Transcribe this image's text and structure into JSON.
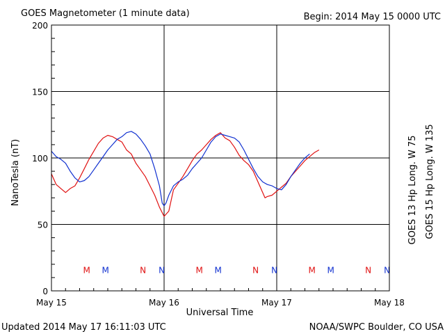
{
  "chart_data": {
    "type": "line",
    "title": "GOES Magnetometer (1 minute data)",
    "begin": "Begin:  2014 May 15 0000 UTC",
    "xlabel": "Universal Time",
    "ylabel": "NanoTesla (nT)",
    "updated": "Updated 2014 May 17 16:11:03 UTC",
    "source": "NOAA/SWPC Boulder, CO USA",
    "ylim": [
      0,
      200
    ],
    "xlim": [
      0,
      72
    ],
    "y_ticks": [
      "0",
      "50",
      "100",
      "150",
      "200"
    ],
    "x_ticks": [
      {
        "label": "May 15",
        "hour": 0
      },
      {
        "label": "May 16",
        "hour": 24
      },
      {
        "label": "May 17",
        "hour": 48
      },
      {
        "label": "May 18",
        "hour": 72
      }
    ],
    "grid": true,
    "legend_position": "right (vertical)",
    "x_unit": "hours since 2014 May 15 0000 UTC",
    "series": [
      {
        "name": "GOES 13 Hp  Long. W 75",
        "color": "#e01010",
        "points": [
          [
            0,
            88
          ],
          [
            1,
            80
          ],
          [
            2,
            77
          ],
          [
            3,
            74
          ],
          [
            4,
            77
          ],
          [
            5,
            79
          ],
          [
            6,
            85
          ],
          [
            7,
            92
          ],
          [
            8,
            99
          ],
          [
            9,
            105
          ],
          [
            10,
            111
          ],
          [
            11,
            115
          ],
          [
            12,
            117
          ],
          [
            13,
            116
          ],
          [
            14,
            114
          ],
          [
            15,
            112
          ],
          [
            16,
            106
          ],
          [
            17,
            103
          ],
          [
            18,
            96
          ],
          [
            19,
            91
          ],
          [
            20,
            86
          ],
          [
            21,
            79
          ],
          [
            22,
            72
          ],
          [
            23,
            63
          ],
          [
            24,
            56
          ],
          [
            25,
            60
          ],
          [
            25.5,
            68
          ],
          [
            26,
            76
          ],
          [
            27,
            81
          ],
          [
            28,
            86
          ],
          [
            29,
            92
          ],
          [
            30,
            98
          ],
          [
            31,
            103
          ],
          [
            32,
            106
          ],
          [
            33,
            110
          ],
          [
            34,
            114
          ],
          [
            35,
            117
          ],
          [
            36,
            119
          ],
          [
            37,
            115
          ],
          [
            38,
            113
          ],
          [
            39,
            108
          ],
          [
            40,
            102
          ],
          [
            41,
            98
          ],
          [
            42,
            95
          ],
          [
            43,
            90
          ],
          [
            44,
            82
          ],
          [
            45,
            74
          ],
          [
            45.5,
            70
          ],
          [
            46,
            71
          ],
          [
            47,
            72
          ],
          [
            48,
            75
          ],
          [
            49,
            78
          ],
          [
            50,
            81
          ],
          [
            51,
            86
          ],
          [
            52,
            90
          ],
          [
            53,
            94
          ],
          [
            54,
            98
          ],
          [
            55,
            101
          ],
          [
            56,
            104
          ],
          [
            57,
            106
          ]
        ]
      },
      {
        "name": "GOES 15 Hp  Long. W 135",
        "color": "#1030d0",
        "points": [
          [
            0,
            105
          ],
          [
            1,
            101
          ],
          [
            2,
            99
          ],
          [
            3,
            96
          ],
          [
            4,
            90
          ],
          [
            5,
            85
          ],
          [
            6,
            82
          ],
          [
            7,
            83
          ],
          [
            8,
            86
          ],
          [
            9,
            91
          ],
          [
            10,
            96
          ],
          [
            11,
            101
          ],
          [
            12,
            106
          ],
          [
            13,
            110
          ],
          [
            14,
            114
          ],
          [
            15,
            116
          ],
          [
            16,
            119
          ],
          [
            17,
            120
          ],
          [
            18,
            118
          ],
          [
            19,
            114
          ],
          [
            20,
            109
          ],
          [
            21,
            103
          ],
          [
            22,
            92
          ],
          [
            23,
            79
          ],
          [
            23.6,
            66
          ],
          [
            24,
            64
          ],
          [
            24.4,
            66
          ],
          [
            25,
            72
          ],
          [
            26,
            79
          ],
          [
            27,
            82
          ],
          [
            28,
            84
          ],
          [
            29,
            87
          ],
          [
            30,
            92
          ],
          [
            31,
            96
          ],
          [
            32,
            100
          ],
          [
            33,
            106
          ],
          [
            34,
            112
          ],
          [
            35,
            116
          ],
          [
            36,
            118
          ],
          [
            37,
            117
          ],
          [
            38,
            116
          ],
          [
            39,
            115
          ],
          [
            40,
            112
          ],
          [
            41,
            106
          ],
          [
            42,
            99
          ],
          [
            43,
            92
          ],
          [
            44,
            86
          ],
          [
            45,
            82
          ],
          [
            46,
            80
          ],
          [
            47,
            79
          ],
          [
            48,
            77
          ],
          [
            49,
            76
          ],
          [
            50,
            80
          ],
          [
            51,
            86
          ],
          [
            52,
            91
          ],
          [
            53,
            96
          ],
          [
            54,
            100
          ],
          [
            55,
            103
          ]
        ]
      }
    ],
    "markers": [
      {
        "label": "M",
        "hour": 7.5,
        "color": "#e01010"
      },
      {
        "label": "M",
        "hour": 11.5,
        "color": "#1030d0"
      },
      {
        "label": "N",
        "hour": 19.5,
        "color": "#e01010"
      },
      {
        "label": "N",
        "hour": 23.5,
        "color": "#1030d0"
      },
      {
        "label": "M",
        "hour": 31.5,
        "color": "#e01010"
      },
      {
        "label": "M",
        "hour": 35.5,
        "color": "#1030d0"
      },
      {
        "label": "N",
        "hour": 43.5,
        "color": "#e01010"
      },
      {
        "label": "N",
        "hour": 47.5,
        "color": "#1030d0"
      },
      {
        "label": "M",
        "hour": 55.5,
        "color": "#e01010"
      },
      {
        "label": "M",
        "hour": 59.5,
        "color": "#1030d0"
      },
      {
        "label": "N",
        "hour": 67.5,
        "color": "#e01010"
      },
      {
        "label": "N",
        "hour": 71.5,
        "color": "#1030d0"
      }
    ],
    "marker_level": 16
  }
}
